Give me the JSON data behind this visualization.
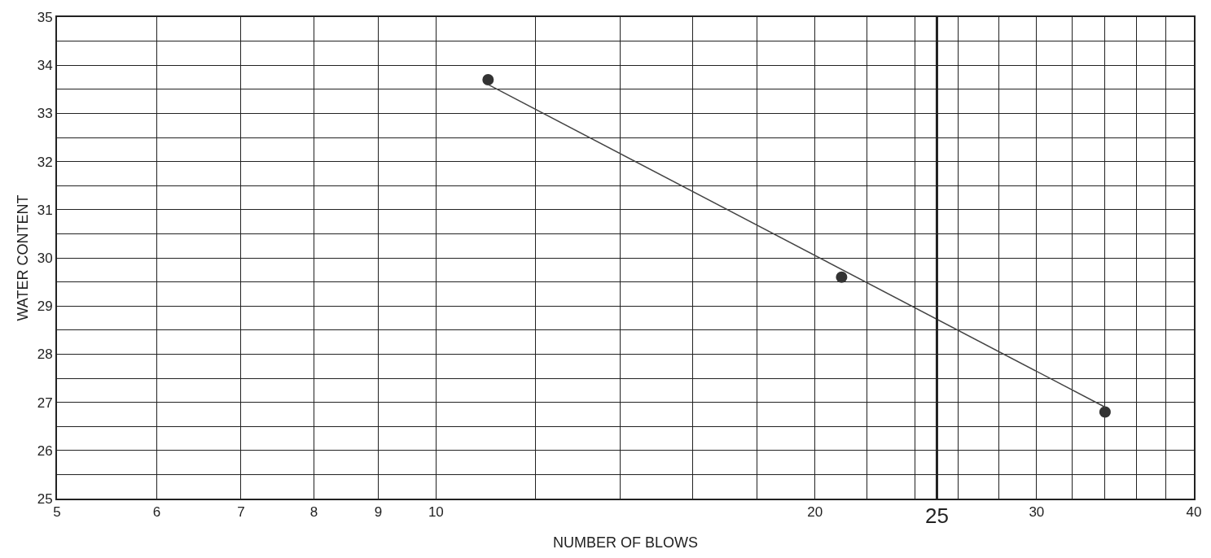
{
  "chart_data": {
    "type": "scatter",
    "xlabel": "NUMBER OF BLOWS",
    "ylabel": "WATER CONTENT",
    "log": "x",
    "grid": true,
    "xlim": [
      5,
      40
    ],
    "ylim": [
      25,
      35
    ],
    "xticks": [
      5,
      6,
      7,
      8,
      9,
      10,
      {
        "value": 12,
        "label": null
      },
      {
        "value": 14,
        "label": null
      },
      {
        "value": 16,
        "label": null
      },
      {
        "value": 18,
        "label": null
      },
      20,
      {
        "value": 22,
        "label": null
      },
      {
        "value": 24,
        "label": null
      },
      {
        "value": 26,
        "label": null
      },
      {
        "value": 28,
        "label": null
      },
      30,
      {
        "value": 32,
        "label": null
      },
      {
        "value": 34,
        "label": null
      },
      {
        "value": 36,
        "label": null
      },
      {
        "value": 38,
        "label": null
      },
      40
    ],
    "yticks": [
      25,
      {
        "value": 25.5,
        "label": null
      },
      26,
      {
        "value": 26.5,
        "label": null
      },
      27,
      {
        "value": 27.5,
        "label": null
      },
      28,
      {
        "value": 28.5,
        "label": null
      },
      29,
      {
        "value": 29.5,
        "label": null
      },
      30,
      {
        "value": 30.5,
        "label": null
      },
      31,
      {
        "value": 31.5,
        "label": null
      },
      32,
      {
        "value": 32.5,
        "label": null
      },
      33,
      {
        "value": 33.5,
        "label": null
      },
      34,
      {
        "value": 34.5,
        "label": null
      },
      35
    ],
    "ref_lines": [
      {
        "axis": "x",
        "value": 25,
        "label": "25",
        "color": "#222222"
      }
    ],
    "series": [
      {
        "color": "#333333",
        "marker": "circle",
        "x": [
          11,
          21,
          34
        ],
        "values": [
          33.7,
          29.6,
          26.8
        ]
      },
      {
        "type": "line",
        "color": "#444444",
        "marker": "none",
        "line_style": "solid",
        "x": [
          11,
          34
        ],
        "values": [
          33.6,
          26.9
        ]
      }
    ]
  }
}
